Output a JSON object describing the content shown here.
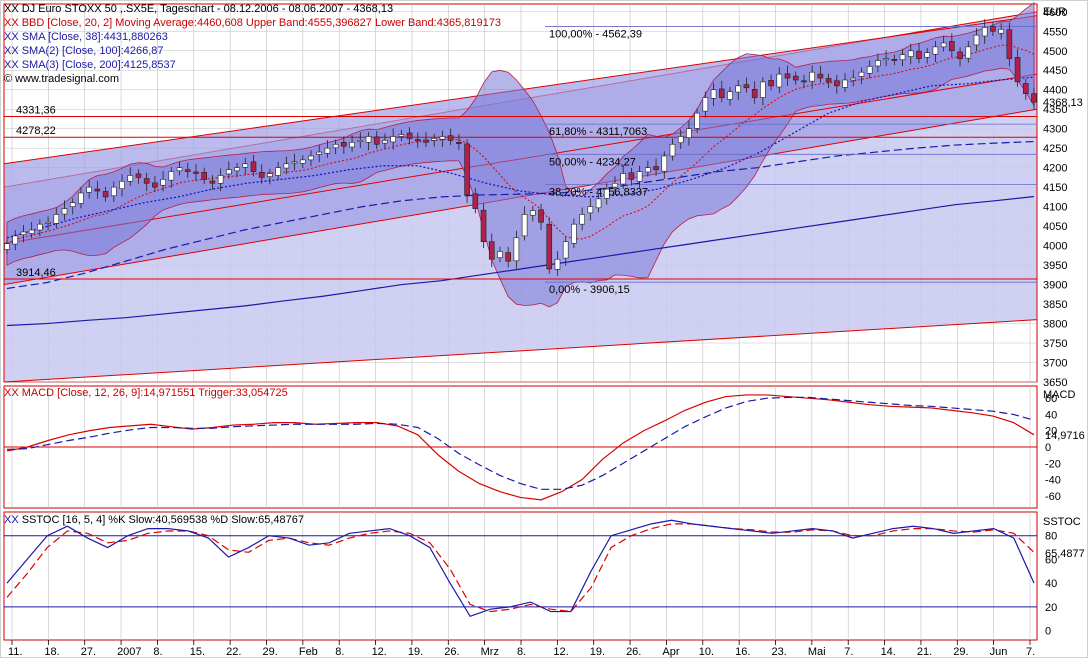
{
  "header": {
    "title": "DJ Euro STOXX 50 ,.SX5E, Tageschart - 08.12.2006 - 08.06.2007 - 4368,13",
    "bbd": "BBD [Close, 20, 2] Moving Average:4460,608 Upper Band:4555,396827 Lower Band:4365,819173",
    "sma1": "SMA [Close, 38]:4431,880263",
    "sma2": "SMA(2) [Close, 100]:4266,87",
    "sma3": "SMA(3) [Close, 200]:4125,8537",
    "source": "www.tradesignal.com",
    "xx_marker": "XX"
  },
  "colors": {
    "frame": "#cc0000",
    "band_fill": "#7a78d8",
    "channel_fill": "#c8c8f0",
    "candle_up": "#ffffff",
    "candle_down": "#b0204a",
    "sma_blue": "#1a1aa8",
    "red": "#dd0000",
    "grid": "#c0c0c0"
  },
  "chart_data": [
    {
      "type": "candlestick",
      "panel": "price",
      "unit_label": "EUR",
      "y_ticks": [
        3650,
        3700,
        3750,
        3800,
        3850,
        3900,
        3950,
        4000,
        4050,
        4100,
        4150,
        4200,
        4250,
        4300,
        4350,
        4400,
        4450,
        4500,
        4550,
        4600
      ],
      "ylim": [
        3650,
        4620
      ],
      "last_value": "4368,13",
      "horizontal_levels": [
        {
          "value": 4331.36,
          "label": "4331,36"
        },
        {
          "value": 4278.22,
          "label": "4278,22"
        },
        {
          "value": 3914.46,
          "label": "3914,46"
        }
      ],
      "fibonacci": [
        {
          "value": 4562.39,
          "label": "100,00% - 4562,39"
        },
        {
          "value": 4311.7063,
          "label": "61,80% - 4311,7063"
        },
        {
          "value": 4234.27,
          "label": "50,00% - 4234,27"
        },
        {
          "value": 4156.8337,
          "label": "38,20% - 4156,8337"
        },
        {
          "value": 3906.15,
          "label": "0,00% - 3906,15"
        }
      ],
      "x_ticks": [
        "11.",
        "18.",
        "27.",
        "2007",
        "8.",
        "15.",
        "22.",
        "29.",
        "Feb",
        "8.",
        "12.",
        "19.",
        "26.",
        "Mrz",
        "8.",
        "12.",
        "19.",
        "26.",
        "Apr",
        "10.",
        "16.",
        "23.",
        "Mai",
        "7.",
        "14.",
        "21.",
        "29.",
        "Jun",
        "7."
      ],
      "close": [
        4005,
        4025,
        4035,
        4040,
        4055,
        4060,
        4080,
        4095,
        4110,
        4135,
        4150,
        4140,
        4125,
        4150,
        4165,
        4180,
        4175,
        4160,
        4150,
        4170,
        4190,
        4200,
        4190,
        4185,
        4170,
        4160,
        4180,
        4195,
        4200,
        4210,
        4190,
        4175,
        4185,
        4200,
        4210,
        4215,
        4220,
        4230,
        4240,
        4250,
        4260,
        4255,
        4265,
        4270,
        4280,
        4260,
        4270,
        4280,
        4285,
        4275,
        4270,
        4265,
        4275,
        4280,
        4270,
        4262,
        4130,
        4095,
        4010,
        3965,
        3985,
        3960,
        4020,
        4080,
        4090,
        4060,
        3940,
        3965,
        4010,
        4055,
        4080,
        4100,
        4120,
        4145,
        4160,
        4185,
        4170,
        4190,
        4200,
        4195,
        4230,
        4260,
        4280,
        4300,
        4340,
        4380,
        4400,
        4380,
        4395,
        4410,
        4405,
        4380,
        4420,
        4410,
        4440,
        4430,
        4425,
        4420,
        4445,
        4430,
        4420,
        4410,
        4425,
        4430,
        4445,
        4460,
        4475,
        4480,
        4475,
        4490,
        4500,
        4480,
        4495,
        4510,
        4520,
        4500,
        4480,
        4510,
        4540,
        4560,
        4550,
        4555,
        4480,
        4420,
        4390,
        4368.13
      ],
      "sma": [
        {
          "name": "SMA [Close, 38]",
          "values": [
            4020,
            4045,
            4070,
            4090,
            4110,
            4125,
            4145,
            4160,
            4170,
            4180,
            4195,
            4205,
            4205,
            4185,
            4160,
            4140,
            4130,
            4125,
            4130,
            4145,
            4170,
            4200,
            4240,
            4290,
            4340,
            4370,
            4390,
            4410,
            4415,
            4425,
            4432
          ]
        },
        {
          "name": "SMA(2) [Close, 100]",
          "values": [
            3890,
            3905,
            3930,
            3960,
            3990,
            4015,
            4040,
            4060,
            4080,
            4100,
            4115,
            4125,
            4130,
            4132,
            4135,
            4145,
            4160,
            4175,
            4190,
            4200,
            4215,
            4230,
            4240,
            4250,
            4258,
            4263,
            4267
          ]
        },
        {
          "name": "SMA(3) [Close, 200]",
          "values": [
            3795,
            3800,
            3808,
            3815,
            3825,
            3835,
            3845,
            3858,
            3870,
            3885,
            3900,
            3910,
            3925,
            3940,
            3955,
            3970,
            3985,
            4000,
            4015,
            4030,
            4045,
            4060,
            4075,
            4090,
            4105,
            4115,
            4126
          ]
        }
      ]
    },
    {
      "type": "line",
      "panel": "macd",
      "title": "MACD [Close, 12, 26, 9]:14,971551 Trigger:33,054725",
      "unit_label": "MACD",
      "y_ticks": [
        -60,
        -40,
        -20,
        0,
        20,
        40,
        60
      ],
      "ylim": [
        -75,
        75
      ],
      "last_value": "14,9716",
      "series": [
        {
          "name": "MACD",
          "values": [
            -5,
            0,
            8,
            15,
            20,
            24,
            26,
            28,
            25,
            22,
            24,
            27,
            28,
            30,
            30,
            28,
            29,
            30,
            30,
            26,
            15,
            -10,
            -30,
            -45,
            -55,
            -62,
            -65,
            -55,
            -40,
            -15,
            5,
            20,
            32,
            45,
            55,
            62,
            64,
            64,
            62,
            60,
            58,
            55,
            52,
            50,
            49,
            48,
            45,
            42,
            38,
            30,
            15
          ]
        },
        {
          "name": "Trigger",
          "values": [
            -3,
            -2,
            3,
            8,
            12,
            17,
            21,
            24,
            24,
            23,
            23,
            25,
            26,
            27,
            28,
            28,
            28,
            28,
            29,
            28,
            24,
            10,
            -8,
            -22,
            -35,
            -45,
            -52,
            -52,
            -47,
            -35,
            -20,
            -5,
            10,
            25,
            37,
            48,
            56,
            60,
            61,
            61,
            59,
            57,
            55,
            53,
            51,
            50,
            48,
            46,
            44,
            40,
            33
          ]
        }
      ]
    },
    {
      "type": "line",
      "panel": "stochastic",
      "title": "SSTOC [16, 5, 4] %K Slow:40,569538 %D Slow:65,48767",
      "unit_label": "SSTOC",
      "y_ticks": [
        0,
        20,
        40,
        60,
        80
      ],
      "ylim": [
        -8,
        100
      ],
      "last_value": "65,4877",
      "levels": [
        80,
        20
      ],
      "series": [
        {
          "name": "%K Slow",
          "values": [
            40,
            60,
            80,
            88,
            78,
            70,
            80,
            86,
            86,
            84,
            78,
            62,
            70,
            80,
            78,
            72,
            74,
            82,
            84,
            86,
            80,
            70,
            40,
            12,
            18,
            20,
            24,
            16,
            16,
            50,
            80,
            85,
            90,
            93,
            90,
            88,
            86,
            84,
            82,
            84,
            86,
            84,
            78,
            82,
            86,
            88,
            86,
            82,
            84,
            86,
            78,
            40
          ]
        },
        {
          "name": "%D Slow",
          "values": [
            28,
            48,
            70,
            84,
            82,
            74,
            76,
            82,
            84,
            84,
            80,
            68,
            66,
            76,
            78,
            74,
            72,
            78,
            82,
            84,
            82,
            74,
            52,
            22,
            16,
            18,
            22,
            18,
            16,
            36,
            70,
            80,
            86,
            90,
            90,
            88,
            86,
            85,
            83,
            83,
            85,
            84,
            80,
            80,
            84,
            86,
            86,
            84,
            83,
            85,
            82,
            66
          ]
        }
      ]
    }
  ]
}
